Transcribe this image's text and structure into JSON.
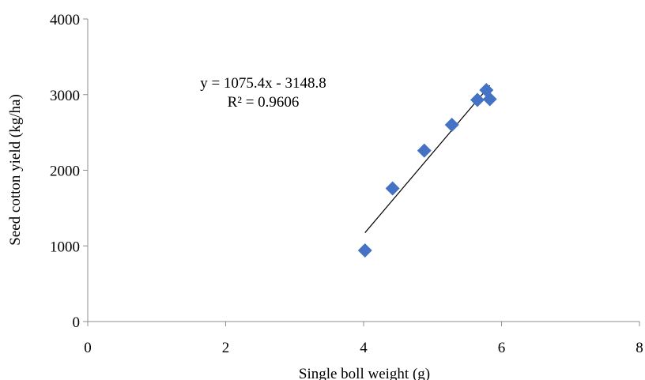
{
  "chart_data": {
    "type": "scatter",
    "title": "",
    "xlabel": "Single boll weight (g)",
    "ylabel": "Seed cotton yield (kg/ha)",
    "xlim": [
      0,
      8
    ],
    "ylim": [
      0,
      4000
    ],
    "x_ticks": [
      0,
      2,
      4,
      6,
      8
    ],
    "y_ticks": [
      0,
      1000,
      2000,
      3000,
      4000
    ],
    "x_tick_labels": [
      "0",
      "2",
      "4",
      "6",
      "8"
    ],
    "y_tick_labels": [
      "0",
      "1000",
      "2000",
      "3000",
      "4000"
    ],
    "grid": false,
    "legend": "none",
    "marker": "diamond",
    "marker_color": "#4472C4",
    "series": [
      {
        "points": [
          {
            "x": 4.02,
            "y": 940
          },
          {
            "x": 4.42,
            "y": 1760
          },
          {
            "x": 4.88,
            "y": 2260
          },
          {
            "x": 5.28,
            "y": 2600
          },
          {
            "x": 5.65,
            "y": 2930
          },
          {
            "x": 5.78,
            "y": 3060
          },
          {
            "x": 5.83,
            "y": 2940
          }
        ]
      }
    ],
    "trendline": {
      "type": "linear",
      "slope": 1075.4,
      "intercept": -3148.8,
      "x_range": [
        4.02,
        5.83
      ],
      "color": "#000000",
      "equation_label": "y = 1075.4x - 3148.8",
      "r2_label": "R² = 0.9606"
    }
  }
}
